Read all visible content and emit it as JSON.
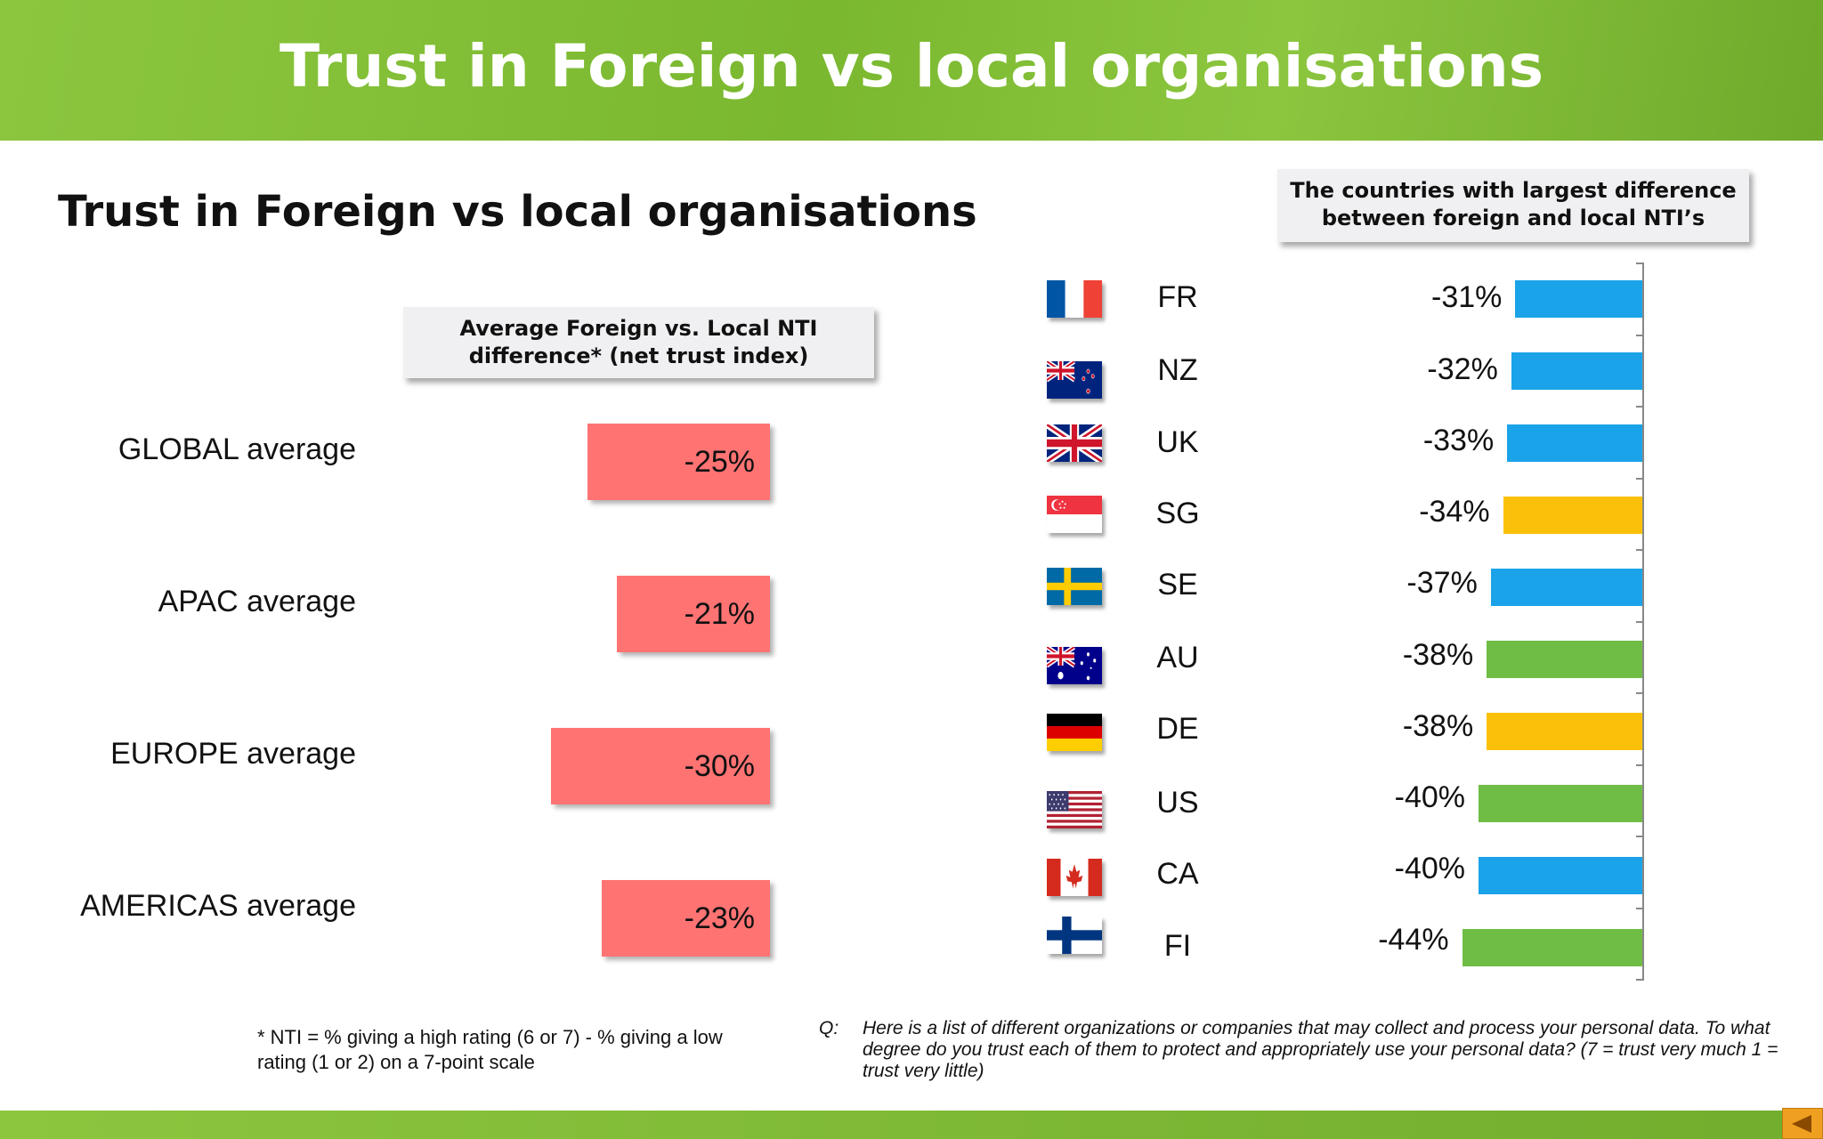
{
  "banner_title": "Trust in Foreign vs local organisations",
  "subtitle": "Trust in Foreign vs local organisations",
  "left_callout": {
    "line1": "Average Foreign vs. Local NTI",
    "line2": "difference* (net trust index)"
  },
  "right_callout": {
    "line1": "The countries with largest difference",
    "line2": "between foreign and local NTI’s"
  },
  "chart_data": [
    {
      "type": "bar",
      "orientation": "horizontal",
      "categories": [
        "GLOBAL average",
        "APAC average",
        "EUROPE average",
        "AMERICAS average"
      ],
      "values": [
        -25,
        -21,
        -30,
        -23
      ],
      "data_labels": [
        "-25%",
        "-21%",
        "-30%",
        "-23%"
      ],
      "unit": "%",
      "bar_color": "#ff7373"
    },
    {
      "type": "bar",
      "orientation": "horizontal",
      "categories": [
        "FR",
        "NZ",
        "UK",
        "SG",
        "SE",
        "AU",
        "DE",
        "US",
        "CA",
        "FI"
      ],
      "values": [
        -31,
        -32,
        -33,
        -34,
        -37,
        -38,
        -38,
        -40,
        -40,
        -44
      ],
      "data_labels": [
        "-31%",
        "-32%",
        "-33%",
        "-34%",
        "-37%",
        "-38%",
        "-38%",
        "-40%",
        "-40%",
        "-44%"
      ],
      "bar_colors": [
        "#1aa3e8",
        "#1aa3e8",
        "#1aa3e8",
        "#fbc10a",
        "#1aa3e8",
        "#6fbd44",
        "#fbc10a",
        "#6fbd44",
        "#1aa3e8",
        "#6fbd44"
      ],
      "flags": [
        "france-flag-icon",
        "new-zealand-flag-icon",
        "uk-flag-icon",
        "singapore-flag-icon",
        "sweden-flag-icon",
        "australia-flag-icon",
        "germany-flag-icon",
        "usa-flag-icon",
        "canada-flag-icon",
        "finland-flag-icon"
      ],
      "unit": "%"
    }
  ],
  "footnote": "* NTI = % giving a high rating (6 or 7) - % giving a low rating (1 or 2) on a 7-point scale",
  "question": {
    "label": "Q:",
    "text": "Here is a list of different organizations or companies that may collect and process your personal data.  To what degree do you trust each of them to protect and appropriately use your personal data? (7 = trust very much 1 = trust very little)"
  }
}
